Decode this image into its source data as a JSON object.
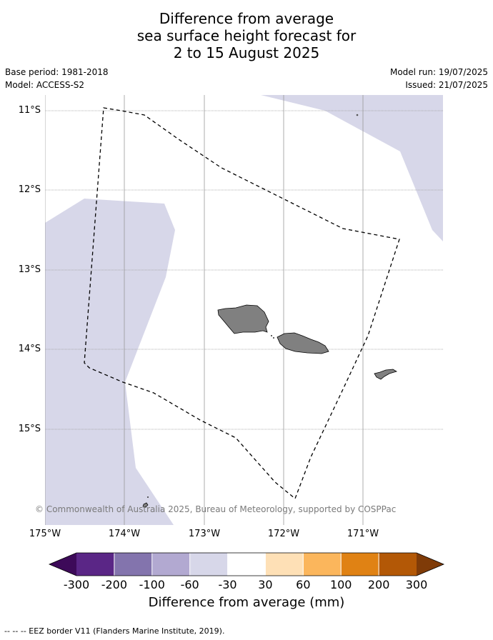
{
  "header": {
    "title_line1": "Difference from average",
    "title_line2": "sea surface height forecast for",
    "title_line3": "2 to 15 August 2025",
    "base_period": "Base period: 1981-2018",
    "model": "Model: ACCESS-S2",
    "model_run": "Model run: 19/07/2025",
    "issued": "Issued: 21/07/2025"
  },
  "map": {
    "lat_labels": [
      "11°S",
      "12°S",
      "13°S",
      "14°S",
      "15°S"
    ],
    "lon_labels": [
      "175°W",
      "174°W",
      "173°W",
      "172°W",
      "171°W"
    ],
    "copyright": "© Commonwealth of Australia 2025, Bureau of Meteorology, supported by COSPPac",
    "colors": {
      "negative_light": "#d7d7e9",
      "land": "#808080",
      "grid": "#999999"
    }
  },
  "colorbar": {
    "colors": [
      "#3d0a59",
      "#5a2686",
      "#8374ad",
      "#b2a9d1",
      "#d7d7e9",
      "#ffffff",
      "#fee0b6",
      "#fbb65c",
      "#e08214",
      "#b35806",
      "#7f3b08"
    ],
    "ticks": [
      "-300",
      "-200",
      "-100",
      "-60",
      "-30",
      "30",
      "60",
      "100",
      "200",
      "300"
    ],
    "title": "Difference from average (mm)"
  },
  "footer": {
    "legend_text": "--  --  -- EEZ border V11 (Flanders Marine Institute, 2019)."
  }
}
